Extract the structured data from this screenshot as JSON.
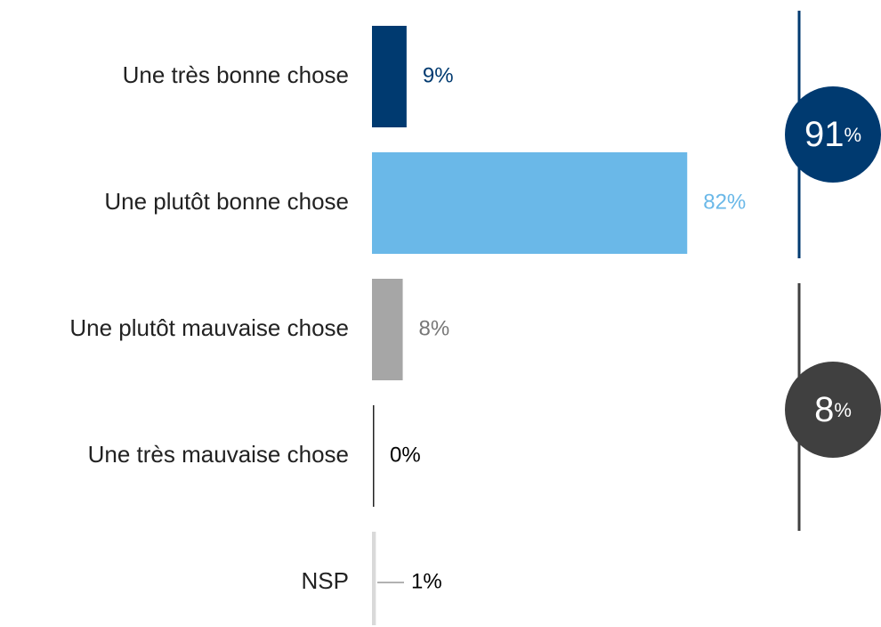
{
  "chart_data": {
    "type": "bar",
    "orientation": "horizontal",
    "categories": [
      "Une très bonne chose",
      "Une plutôt bonne chose",
      "Une plutôt mauvaise chose",
      "Une très mauvaise chose",
      "NSP"
    ],
    "values": [
      9,
      82,
      8,
      0,
      1
    ],
    "value_labels": [
      "9%",
      "82%",
      "8%",
      "0%",
      "1%"
    ],
    "colors": [
      "#003a70",
      "#6ab8e8",
      "#a6a6a6",
      "#222222",
      "#d9d9d9"
    ],
    "label_colors": [
      "#003a70",
      "#6ab8e8",
      "#777777",
      "#000000",
      "#000000"
    ],
    "xlim": [
      0,
      100
    ],
    "groups": [
      {
        "value": 91,
        "unit": "%",
        "color": "#003a70"
      },
      {
        "value": 8,
        "unit": "%",
        "color": "#404040"
      }
    ]
  }
}
